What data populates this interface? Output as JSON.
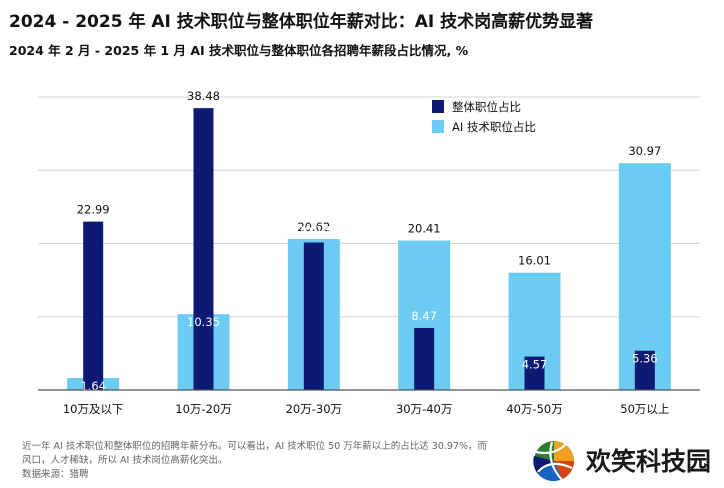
{
  "title": "2024 - 2025 年 AI 技术职位与整体职位年薪对比：AI 技术岗高薪优势显著",
  "subtitle": "2024 年 2 月 - 2025 年 1 月 AI 技术职位与整体职位各招聘年薪段占比情况, %",
  "footnote": {
    "line1": "近一年 AI 技术职位和整体职位的招聘年薪分布。可以看出，AI 技术职位 50 万年薪以上的占比达 30.97%，而",
    "line2": "风口，人才稀缺，所以 AI 技术岗位高薪化突出。",
    "source": "数据来源：猎聘"
  },
  "brand": {
    "name": "欢笑科技园",
    "logo_icon": "volleyball-logo-icon"
  },
  "colors": {
    "overall": "#0d1a73",
    "ai": "#6ccbf3",
    "grid": "#d6d6d6",
    "axis": "#555555"
  },
  "chart_data": {
    "type": "bar",
    "categories": [
      "10万及以下",
      "10万-20万",
      "20万-30万",
      "30万-40万",
      "40万-50万",
      "50万以上"
    ],
    "series": [
      {
        "name": "整体职位占比",
        "values": [
          22.99,
          38.48,
          20.14,
          8.47,
          4.57,
          5.36
        ]
      },
      {
        "name": "AI 技术职位占比",
        "values": [
          1.64,
          10.35,
          20.62,
          20.41,
          16.01,
          30.97
        ]
      }
    ],
    "ylim": [
      0,
      40
    ],
    "grid": true,
    "legend": "top-right"
  }
}
